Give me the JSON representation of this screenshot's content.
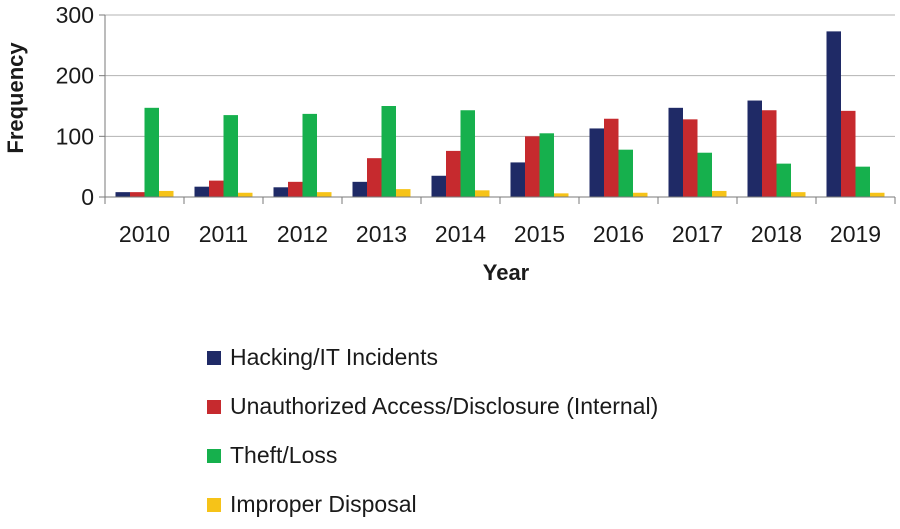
{
  "chart_data": {
    "type": "bar",
    "title": "",
    "xlabel": "Year",
    "ylabel": "Frequency",
    "ylim": [
      0,
      300
    ],
    "yticks": [
      0,
      100,
      200,
      300
    ],
    "grid": true,
    "legend_position": "bottom",
    "categories": [
      "2010",
      "2011",
      "2012",
      "2013",
      "2014",
      "2015",
      "2016",
      "2017",
      "2018",
      "2019"
    ],
    "series": [
      {
        "name": "Hacking/IT Incidents",
        "color": "#1f2a66",
        "values": [
          8,
          17,
          16,
          25,
          35,
          57,
          113,
          147,
          159,
          273
        ]
      },
      {
        "name": "Unauthorized Access/Disclosure (Internal)",
        "color": "#c62a2e",
        "values": [
          8,
          27,
          25,
          64,
          76,
          100,
          129,
          128,
          143,
          142
        ]
      },
      {
        "name": "Theft/Loss",
        "color": "#16b04d",
        "values": [
          147,
          135,
          137,
          150,
          143,
          105,
          78,
          73,
          55,
          50
        ]
      },
      {
        "name": "Improper Disposal",
        "color": "#f6c318",
        "values": [
          10,
          7,
          8,
          13,
          11,
          6,
          7,
          10,
          8,
          7
        ]
      }
    ]
  }
}
